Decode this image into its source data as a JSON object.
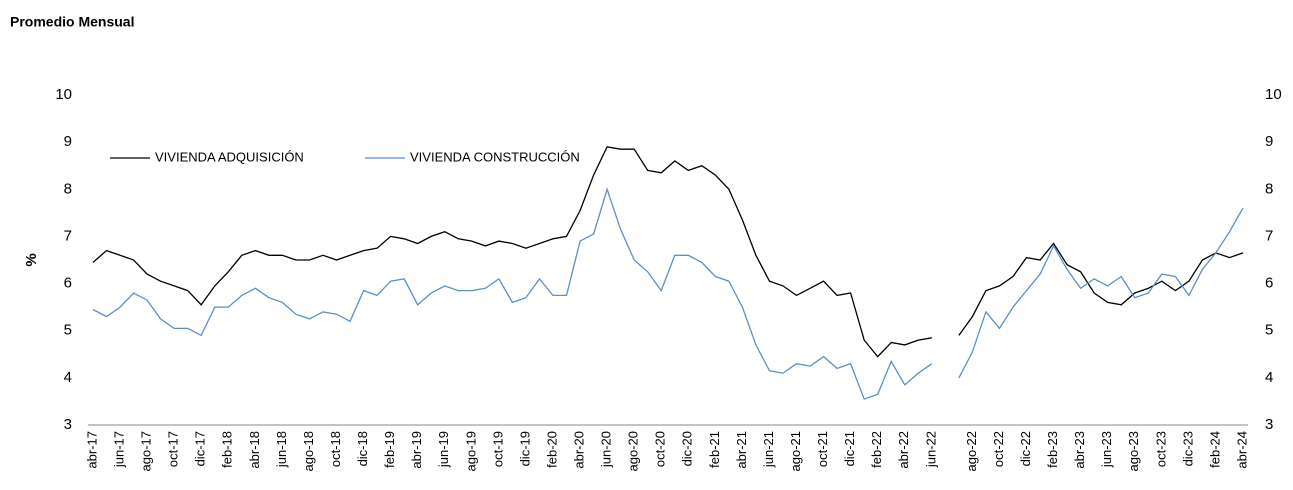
{
  "chart_data": {
    "type": "line",
    "title": "Promedio Mensual",
    "ylabel": "%",
    "categories": [
      "abr-17",
      null,
      "jun-17",
      null,
      "ago-17",
      null,
      "oct-17",
      null,
      "dic-17",
      null,
      "feb-18",
      null,
      "abr-18",
      null,
      "jun-18",
      null,
      "ago-18",
      null,
      "oct-18",
      null,
      "dic-18",
      null,
      "feb-19",
      null,
      "abr-19",
      null,
      "jun-19",
      null,
      "ago-19",
      null,
      "oct-19",
      null,
      "dic-19",
      null,
      "feb-20",
      null,
      "abr-20",
      null,
      "jun-20",
      null,
      "ago-20",
      null,
      "oct-20",
      null,
      "dic-20",
      null,
      "feb-21",
      null,
      "abr-21",
      null,
      "jun-21",
      null,
      "ago-21",
      null,
      "oct-21",
      null,
      "dic-21",
      null,
      "feb-22",
      null,
      "abr-22",
      null,
      "jun-22",
      null,
      null,
      "ago-22",
      null,
      "oct-22",
      null,
      "dic-22",
      null,
      "feb-23",
      null,
      "abr-23",
      null,
      "jun-23",
      null,
      "ago-23",
      null,
      "oct-23",
      null,
      "dic-23",
      null,
      "feb-24",
      null,
      "abr-24"
    ],
    "series": [
      {
        "name": "VIVIENDA ADQUISICIÓN",
        "color": "#000000",
        "values": [
          6.45,
          6.7,
          6.6,
          6.5,
          6.2,
          6.05,
          5.95,
          5.85,
          5.55,
          5.95,
          6.25,
          6.6,
          6.7,
          6.6,
          6.6,
          6.5,
          6.5,
          6.6,
          6.5,
          6.6,
          6.7,
          6.75,
          7.0,
          6.95,
          6.85,
          7.0,
          7.1,
          6.95,
          6.9,
          6.8,
          6.9,
          6.85,
          6.75,
          6.85,
          6.95,
          7.0,
          7.55,
          8.3,
          8.9,
          8.85,
          8.85,
          8.4,
          8.35,
          8.6,
          8.4,
          8.5,
          8.3,
          8.0,
          7.35,
          6.6,
          6.05,
          5.95,
          5.75,
          5.9,
          6.05,
          5.75,
          5.8,
          4.8,
          4.45,
          4.75,
          4.7,
          4.8,
          4.85,
          null,
          4.9,
          5.3,
          5.85,
          5.95,
          6.15,
          6.55,
          6.5,
          6.85,
          6.4,
          6.25,
          5.8,
          5.6,
          5.55,
          5.8,
          5.9,
          6.05,
          5.85,
          6.05,
          6.5,
          6.65,
          6.55,
          6.65
        ]
      },
      {
        "name": "VIVIENDA CONSTRUCCIÓN",
        "color": "#5b8fc7",
        "values": [
          5.45,
          5.3,
          5.5,
          5.8,
          5.65,
          5.25,
          5.05,
          5.05,
          4.9,
          5.5,
          5.5,
          5.75,
          5.9,
          5.7,
          5.6,
          5.35,
          5.25,
          5.4,
          5.35,
          5.2,
          5.85,
          5.75,
          6.05,
          6.1,
          5.55,
          5.8,
          5.95,
          5.85,
          5.85,
          5.9,
          6.1,
          5.6,
          5.7,
          6.1,
          5.75,
          5.75,
          6.9,
          7.05,
          8.0,
          7.15,
          6.5,
          6.25,
          5.85,
          6.6,
          6.6,
          6.45,
          6.15,
          6.05,
          5.5,
          4.7,
          4.15,
          4.1,
          4.3,
          4.25,
          4.45,
          4.2,
          4.3,
          3.55,
          3.65,
          4.35,
          3.85,
          4.1,
          4.3,
          null,
          4.0,
          4.55,
          5.4,
          5.05,
          5.5,
          5.85,
          6.2,
          6.8,
          6.3,
          5.9,
          6.1,
          5.95,
          6.15,
          5.7,
          5.8,
          6.2,
          6.15,
          5.75,
          6.3,
          6.65,
          7.1,
          7.6
        ]
      }
    ],
    "ylim": [
      3,
      10
    ],
    "yticks": [
      3,
      4,
      5,
      6,
      7,
      8,
      9,
      10
    ],
    "y2lim": [
      3,
      10
    ],
    "y2ticks": [
      3,
      4,
      5,
      6,
      7,
      8,
      9,
      10
    ],
    "grid": false,
    "legend": "top-left"
  }
}
